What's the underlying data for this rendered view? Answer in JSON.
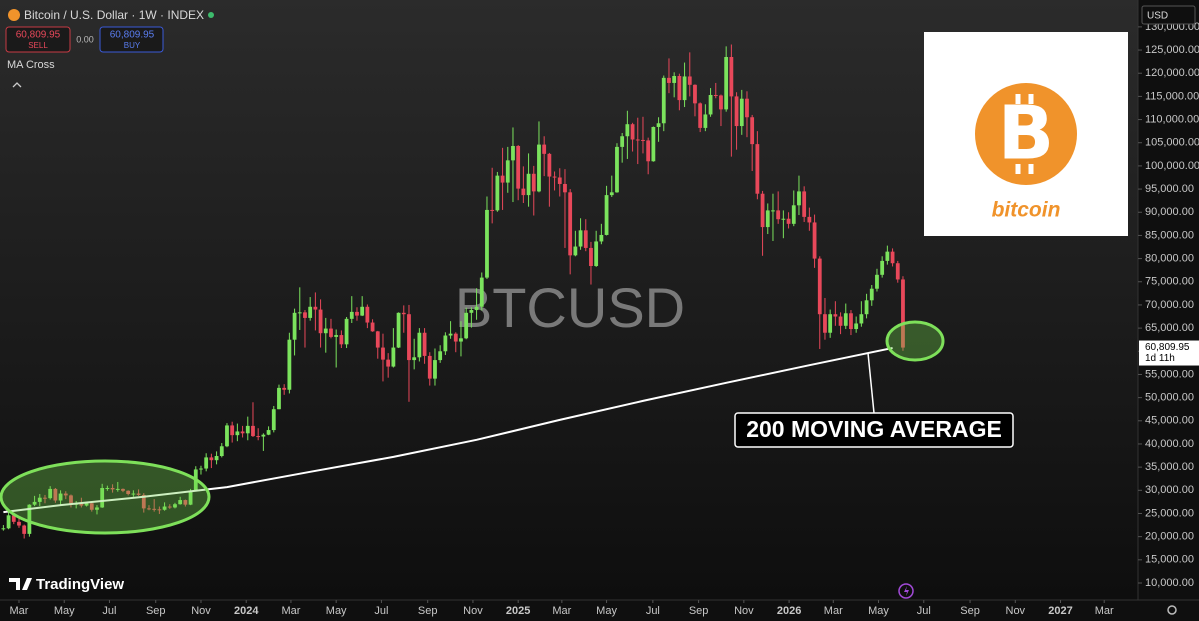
{
  "header": {
    "symbol": "Bitcoin / U.S. Dollar · 1W · INDEX",
    "sell_price": "60,809.95",
    "sell": "SELL",
    "spread": "0.00",
    "buy_price": "60,809.95",
    "buy": "BUY",
    "indicator": "MA Cross",
    "currency": "USD",
    "brand": "TradingView"
  },
  "logo": {
    "text": "bitcoin"
  },
  "chart_data": {
    "type": "candlestick",
    "watermark": "BTCUSD",
    "annotation": "200 MOVING AVERAGE",
    "up_color": "#7be35d",
    "down_color": "#e8485a",
    "grid": false,
    "xlim": [
      -3.65,
      215.2
    ],
    "ylim": [
      6330,
      135800
    ],
    "x": [
      -3,
      -2,
      -1,
      0,
      1,
      2,
      3,
      4,
      5,
      6,
      7,
      8,
      9,
      10,
      11,
      12,
      13,
      14,
      15,
      16,
      17,
      18,
      19,
      20,
      21,
      22,
      23,
      24,
      25,
      26,
      27,
      28,
      29,
      30,
      31,
      32,
      33,
      34,
      35,
      36,
      37,
      38,
      39,
      40,
      41,
      42,
      43,
      44,
      45,
      46,
      47,
      48,
      49,
      50,
      51,
      52,
      53,
      54,
      55,
      56,
      57,
      58,
      59,
      60,
      61,
      62,
      63,
      64,
      65,
      66,
      67,
      68,
      69,
      70,
      71,
      72,
      73,
      74,
      75,
      76,
      77,
      78,
      79,
      80,
      81,
      82,
      83,
      84,
      85,
      86,
      87,
      88,
      89,
      90,
      91,
      92,
      93,
      94,
      95,
      96,
      97,
      98,
      99,
      100,
      101,
      102,
      103,
      104,
      105,
      106,
      107,
      108,
      109,
      110,
      111,
      112,
      113,
      114,
      115,
      116,
      117,
      118,
      119,
      120,
      121,
      122,
      123,
      124,
      125,
      126,
      127,
      128,
      129,
      130,
      131,
      132,
      133,
      134,
      135,
      136,
      137,
      138,
      139,
      140,
      141,
      142,
      143,
      144,
      145,
      146,
      147,
      148,
      149,
      150,
      151,
      152,
      153,
      154,
      155,
      156,
      157,
      158,
      159,
      160,
      161,
      162,
      163,
      164,
      165,
      166,
      167,
      168,
      169,
      170
    ],
    "ohlc": [
      [
        21600,
        22500,
        21300,
        21800
      ],
      [
        21800,
        25200,
        21600,
        24600
      ],
      [
        24600,
        25200,
        22700,
        23200
      ],
      [
        23200,
        23900,
        21900,
        22400
      ],
      [
        22400,
        22600,
        19600,
        20600
      ],
      [
        20600,
        27000,
        20000,
        26900
      ],
      [
        26900,
        28800,
        26600,
        27500
      ],
      [
        27500,
        29200,
        26600,
        28400
      ],
      [
        28400,
        29000,
        27200,
        28300
      ],
      [
        28300,
        30900,
        28000,
        30300
      ],
      [
        30300,
        30500,
        27300,
        27800
      ],
      [
        27800,
        30000,
        26900,
        29300
      ],
      [
        29300,
        29800,
        28100,
        28900
      ],
      [
        28900,
        29100,
        26300,
        26900
      ],
      [
        26900,
        27700,
        26100,
        27100
      ],
      [
        27100,
        28400,
        26300,
        26700
      ],
      [
        26700,
        27400,
        26500,
        27200
      ],
      [
        27200,
        27300,
        25400,
        25800
      ],
      [
        25800,
        26800,
        24800,
        26300
      ],
      [
        26300,
        31400,
        26200,
        30500
      ],
      [
        30500,
        31000,
        29900,
        30500
      ],
      [
        30500,
        31300,
        29500,
        30200
      ],
      [
        30200,
        31800,
        29700,
        30300
      ],
      [
        30300,
        30400,
        29600,
        29900
      ],
      [
        29900,
        30000,
        28900,
        29200
      ],
      [
        29200,
        30000,
        28600,
        29300
      ],
      [
        29300,
        30200,
        28800,
        29000
      ],
      [
        29000,
        29400,
        25200,
        26100
      ],
      [
        26100,
        26800,
        25700,
        26000
      ],
      [
        26000,
        28100,
        25400,
        25900
      ],
      [
        25900,
        26500,
        24900,
        25800
      ],
      [
        25800,
        27400,
        25600,
        26500
      ],
      [
        26500,
        27000,
        26000,
        26300
      ],
      [
        26300,
        27300,
        26100,
        27000
      ],
      [
        27000,
        28600,
        26900,
        27900
      ],
      [
        27900,
        28000,
        26500,
        26900
      ],
      [
        26900,
        30300,
        26800,
        29900
      ],
      [
        29900,
        35200,
        29800,
        34500
      ],
      [
        34500,
        35300,
        33400,
        34700
      ],
      [
        34700,
        38000,
        34100,
        37100
      ],
      [
        37100,
        37900,
        34800,
        36500
      ],
      [
        36500,
        38400,
        35600,
        37400
      ],
      [
        37400,
        40200,
        37100,
        39500
      ],
      [
        39500,
        44500,
        39300,
        44000
      ],
      [
        44000,
        44800,
        40300,
        41900
      ],
      [
        41900,
        44400,
        40600,
        42700
      ],
      [
        42700,
        43900,
        41400,
        42300
      ],
      [
        42300,
        45900,
        40800,
        43900
      ],
      [
        43900,
        49000,
        41500,
        41700
      ],
      [
        41700,
        43400,
        40800,
        41600
      ],
      [
        41600,
        42300,
        38500,
        42000
      ],
      [
        42000,
        43800,
        41900,
        43000
      ],
      [
        43000,
        48200,
        42500,
        47500
      ],
      [
        47500,
        52800,
        47500,
        52100
      ],
      [
        52100,
        52900,
        50600,
        51700
      ],
      [
        51700,
        64000,
        50900,
        62500
      ],
      [
        62500,
        69200,
        59100,
        68300
      ],
      [
        68300,
        73800,
        64600,
        68400
      ],
      [
        68400,
        68900,
        60800,
        67200
      ],
      [
        67200,
        71700,
        66600,
        69600
      ],
      [
        69600,
        72700,
        64500,
        69000
      ],
      [
        69000,
        71200,
        60800,
        63900
      ],
      [
        63900,
        67200,
        59700,
        64900
      ],
      [
        64900,
        67000,
        62800,
        63100
      ],
      [
        63100,
        64700,
        56500,
        63500
      ],
      [
        63500,
        64500,
        60700,
        61500
      ],
      [
        61500,
        67400,
        60700,
        67000
      ],
      [
        67000,
        71900,
        66100,
        68500
      ],
      [
        68500,
        69500,
        66600,
        67700
      ],
      [
        67700,
        71900,
        67600,
        69600
      ],
      [
        69600,
        70100,
        65000,
        66200
      ],
      [
        66200,
        66900,
        64200,
        64300
      ],
      [
        64300,
        64400,
        58400,
        60800
      ],
      [
        60800,
        63800,
        53500,
        58200
      ],
      [
        58200,
        59600,
        54300,
        56700
      ],
      [
        56700,
        65000,
        56500,
        60800
      ],
      [
        60800,
        68400,
        60700,
        68300
      ],
      [
        68300,
        69900,
        64000,
        68000
      ],
      [
        68000,
        70000,
        49100,
        58100
      ],
      [
        58100,
        62700,
        56100,
        58700
      ],
      [
        58700,
        65000,
        57800,
        64000
      ],
      [
        64000,
        65000,
        57300,
        59000
      ],
      [
        59000,
        59800,
        52600,
        54100
      ],
      [
        54100,
        60600,
        52600,
        58100
      ],
      [
        58100,
        61300,
        57500,
        60000
      ],
      [
        60000,
        64100,
        59200,
        63400
      ],
      [
        63400,
        66500,
        62700,
        63800
      ],
      [
        63800,
        64100,
        59800,
        62100
      ],
      [
        62100,
        66500,
        58900,
        62800
      ],
      [
        62800,
        69400,
        62600,
        68300
      ],
      [
        68300,
        69500,
        65100,
        68900
      ],
      [
        68900,
        73600,
        66800,
        69600
      ],
      [
        69600,
        77000,
        68800,
        75900
      ],
      [
        75900,
        93400,
        75600,
        90500
      ],
      [
        90500,
        99600,
        87600,
        90400
      ],
      [
        90400,
        98700,
        90100,
        97900
      ],
      [
        97900,
        103900,
        90500,
        96400
      ],
      [
        96400,
        104100,
        94200,
        101200
      ],
      [
        101200,
        108300,
        92200,
        104300
      ],
      [
        104300,
        104500,
        92600,
        95100
      ],
      [
        95100,
        99900,
        92000,
        93700
      ],
      [
        93700,
        102700,
        91200,
        98300
      ],
      [
        98300,
        100000,
        89300,
        94500
      ],
      [
        94500,
        109600,
        94300,
        104600
      ],
      [
        104600,
        106400,
        97800,
        102600
      ],
      [
        102600,
        102800,
        91200,
        97700
      ],
      [
        97700,
        98800,
        94700,
        97500
      ],
      [
        97500,
        99500,
        93400,
        96100
      ],
      [
        96100,
        99300,
        82300,
        94300
      ],
      [
        94300,
        95000,
        76600,
        80700
      ],
      [
        80700,
        86000,
        80500,
        82600
      ],
      [
        82600,
        88700,
        81900,
        86100
      ],
      [
        86100,
        88500,
        81600,
        82300
      ],
      [
        82300,
        83600,
        74400,
        78400
      ],
      [
        78400,
        86000,
        78200,
        83700
      ],
      [
        83700,
        87500,
        83100,
        85100
      ],
      [
        85100,
        95700,
        85000,
        93700
      ],
      [
        93700,
        97900,
        93300,
        94300
      ],
      [
        94300,
        104900,
        94200,
        104100
      ],
      [
        104100,
        107100,
        100700,
        106400
      ],
      [
        106400,
        111900,
        101500,
        109000
      ],
      [
        109000,
        109300,
        103100,
        105700
      ],
      [
        105700,
        110400,
        100400,
        105600
      ],
      [
        105600,
        110600,
        102700,
        105500
      ],
      [
        105500,
        106100,
        98200,
        101000
      ],
      [
        101000,
        108500,
        100900,
        108400
      ],
      [
        108400,
        110500,
        105200,
        109200
      ],
      [
        109200,
        119500,
        107500,
        119000
      ],
      [
        119000,
        123200,
        115700,
        117900
      ],
      [
        117900,
        120200,
        114800,
        119400
      ],
      [
        119400,
        119900,
        112000,
        114200
      ],
      [
        114200,
        122300,
        112700,
        119300
      ],
      [
        119300,
        124500,
        115000,
        117500
      ],
      [
        117500,
        117600,
        110700,
        113500
      ],
      [
        113500,
        113700,
        107300,
        108200
      ],
      [
        108200,
        113300,
        107500,
        111100
      ],
      [
        111100,
        116800,
        110600,
        115300
      ],
      [
        115300,
        117900,
        114600,
        115200
      ],
      [
        115200,
        115400,
        108600,
        112200
      ],
      [
        112200,
        125800,
        111700,
        123500
      ],
      [
        123500,
        126200,
        102000,
        115000
      ],
      [
        115000,
        115900,
        103500,
        108600
      ],
      [
        108600,
        116400,
        106700,
        114500
      ],
      [
        114500,
        116100,
        106200,
        110500
      ],
      [
        110500,
        111000,
        98900,
        104700
      ],
      [
        104700,
        107500,
        92800,
        94000
      ],
      [
        94000,
        94600,
        80600,
        86800
      ],
      [
        86800,
        91900,
        85300,
        90400
      ],
      [
        90400,
        94000,
        83800,
        90400
      ],
      [
        90400,
        94500,
        87500,
        88500
      ],
      [
        88500,
        90400,
        84400,
        88600
      ],
      [
        88600,
        90000,
        86500,
        87500
      ],
      [
        87500,
        94700,
        87000,
        91500
      ],
      [
        91500,
        97900,
        89400,
        94500
      ],
      [
        94500,
        95600,
        87900,
        89000
      ],
      [
        89000,
        91000,
        86000,
        87800
      ],
      [
        87800,
        89500,
        78000,
        80000
      ],
      [
        80000,
        80500,
        60500,
        68000
      ],
      [
        68000,
        71500,
        62500,
        64000
      ],
      [
        64000,
        69000,
        62900,
        68000
      ],
      [
        68000,
        70800,
        65500,
        67500
      ],
      [
        67500,
        68400,
        63700,
        65500
      ],
      [
        65500,
        70300,
        64800,
        68200
      ],
      [
        68200,
        68900,
        63500,
        64800
      ],
      [
        64800,
        67500,
        64000,
        66000
      ],
      [
        66000,
        70800,
        65300,
        68000
      ],
      [
        68000,
        72400,
        67100,
        71000
      ],
      [
        71000,
        74300,
        69800,
        73500
      ],
      [
        73500,
        77800,
        72900,
        76500
      ],
      [
        76500,
        80500,
        75900,
        79500
      ],
      [
        79500,
        82800,
        78700,
        81500
      ],
      [
        81500,
        82200,
        78300,
        79000
      ],
      [
        79000,
        79500,
        74800,
        75500
      ],
      [
        75500,
        76200,
        60100,
        60800
      ]
    ],
    "ma": {
      "color": "#ffffff",
      "x": [
        -3,
        8,
        24,
        40,
        56,
        72,
        88,
        104,
        120,
        136,
        152,
        168
      ],
      "values": [
        25300,
        26800,
        28600,
        30700,
        34000,
        37200,
        40900,
        45200,
        49300,
        53200,
        57000,
        60700
      ]
    },
    "last_price": {
      "value": 60809.95,
      "label": "60,809.95"
    },
    "countdown": "1d 11h",
    "xticks": [
      {
        "value": 0,
        "label": "Mar"
      },
      {
        "value": 8.7,
        "label": "May"
      },
      {
        "value": 17.4,
        "label": "Jul"
      },
      {
        "value": 26.3,
        "label": "Sep"
      },
      {
        "value": 35,
        "label": "Nov"
      },
      {
        "value": 43.7,
        "label": "2024"
      },
      {
        "value": 52.3,
        "label": "Mar"
      },
      {
        "value": 61,
        "label": "May"
      },
      {
        "value": 69.7,
        "label": "Jul"
      },
      {
        "value": 78.6,
        "label": "Sep"
      },
      {
        "value": 87.3,
        "label": "Nov"
      },
      {
        "value": 96,
        "label": "2025"
      },
      {
        "value": 104.4,
        "label": "Mar"
      },
      {
        "value": 113,
        "label": "May"
      },
      {
        "value": 121.9,
        "label": "Jul"
      },
      {
        "value": 130.7,
        "label": "Sep"
      },
      {
        "value": 139.4,
        "label": "Nov"
      },
      {
        "value": 148.1,
        "label": "2026"
      },
      {
        "value": 156.6,
        "label": "Mar"
      },
      {
        "value": 165.3,
        "label": "May"
      },
      {
        "value": 174,
        "label": "Jul"
      },
      {
        "value": 182.9,
        "label": "Sep"
      },
      {
        "value": 191.6,
        "label": "Nov"
      },
      {
        "value": 200.3,
        "label": "2027"
      },
      {
        "value": 208.7,
        "label": "Mar"
      }
    ],
    "yticks": [
      {
        "value": 10000,
        "label": "10,000.00"
      },
      {
        "value": 15000,
        "label": "15,000.00"
      },
      {
        "value": 20000,
        "label": "20,000.00"
      },
      {
        "value": 25000,
        "label": "25,000.00"
      },
      {
        "value": 30000,
        "label": "30,000.00"
      },
      {
        "value": 35000,
        "label": "35,000.00"
      },
      {
        "value": 40000,
        "label": "40,000.00"
      },
      {
        "value": 45000,
        "label": "45,000.00"
      },
      {
        "value": 50000,
        "label": "50,000.00"
      },
      {
        "value": 55000,
        "label": "55,000.00"
      },
      {
        "value": 60000,
        "label": "60,000.00"
      },
      {
        "value": 65000,
        "label": "65,000.00"
      },
      {
        "value": 70000,
        "label": "70,000.00"
      },
      {
        "value": 75000,
        "label": "75,000.00"
      },
      {
        "value": 80000,
        "label": "80,000.00"
      },
      {
        "value": 85000,
        "label": "85,000.00"
      },
      {
        "value": 90000,
        "label": "90,000.00"
      },
      {
        "value": 95000,
        "label": "95,000.00"
      },
      {
        "value": 100000,
        "label": "100,000.00"
      },
      {
        "value": 105000,
        "label": "105,000.00"
      },
      {
        "value": 110000,
        "label": "110,000.00"
      },
      {
        "value": 115000,
        "label": "115,000.00"
      },
      {
        "value": 120000,
        "label": "120,000.00"
      },
      {
        "value": 125000,
        "label": "125,000.00"
      },
      {
        "value": 130000,
        "label": "130,000.00"
      }
    ]
  }
}
